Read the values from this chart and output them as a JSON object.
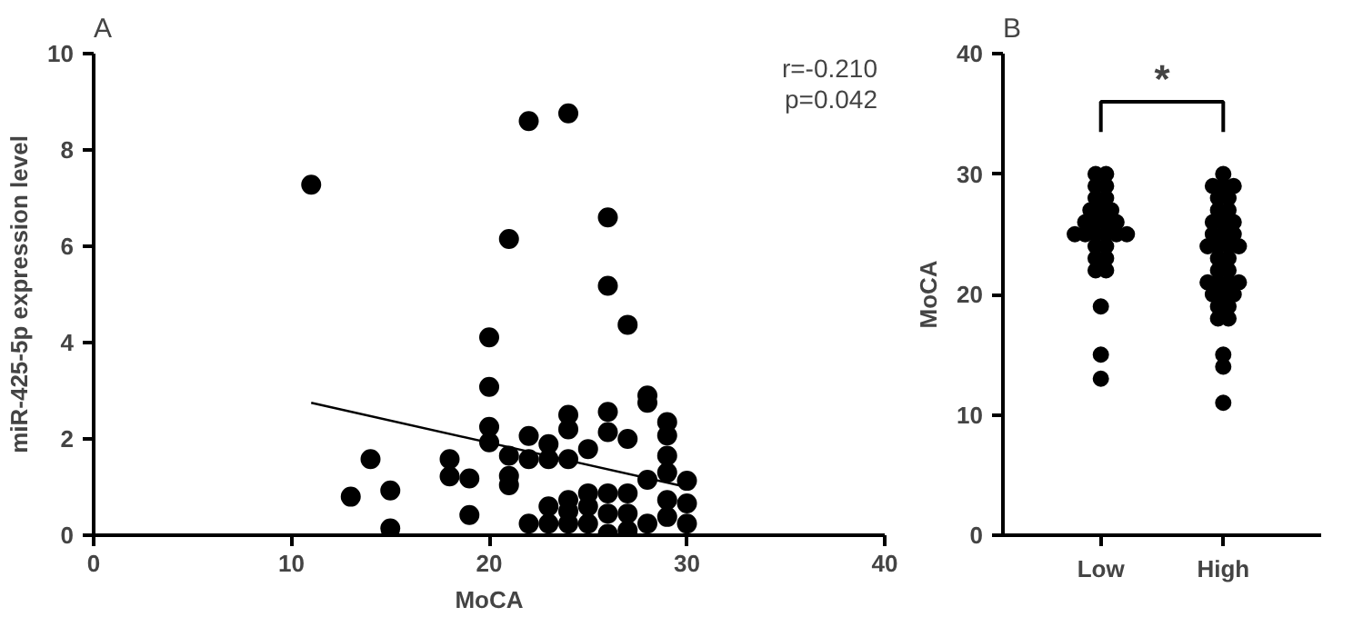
{
  "chart_data": [
    {
      "type": "scatter",
      "title": "A",
      "xlabel": "MoCA",
      "ylabel": "miR-425-5p expression level",
      "xlim": [
        0,
        40
      ],
      "xticks": [
        0,
        10,
        20,
        30,
        40
      ],
      "ylim": [
        0,
        10
      ],
      "yticks": [
        0,
        2,
        4,
        6,
        8,
        10
      ],
      "grid": false,
      "annotations": [
        "r=-0.210",
        "p=0.042"
      ],
      "series": [
        {
          "color": "#000000",
          "marker": "circle",
          "x": [
            11,
            22,
            24,
            26,
            21,
            26,
            27,
            20,
            20,
            28,
            20,
            20,
            13,
            14,
            15,
            15,
            18,
            18,
            19,
            19,
            21,
            21,
            21,
            22,
            22,
            22,
            23,
            23,
            23,
            24,
            24,
            24,
            24,
            24,
            25,
            25,
            25,
            26,
            26,
            26,
            26,
            26,
            27,
            27,
            27,
            28,
            28,
            28,
            29,
            29,
            29,
            29,
            29,
            29,
            30,
            30,
            30,
            23,
            25,
            27,
            24
          ],
          "values": [
            7.28,
            8.6,
            8.76,
            6.6,
            6.15,
            5.18,
            4.37,
            4.11,
            3.08,
            2.9,
            2.25,
            1.93,
            0.8,
            1.58,
            0.93,
            0.14,
            1.58,
            1.22,
            1.18,
            0.42,
            1.65,
            1.23,
            1.04,
            2.06,
            1.58,
            0.24,
            1.89,
            1.58,
            0.6,
            2.5,
            2.2,
            1.58,
            0.73,
            0.24,
            1.79,
            0.87,
            0.24,
            2.56,
            2.14,
            0.87,
            0.45,
            0.03,
            2.0,
            0.87,
            0.45,
            2.75,
            1.15,
            0.24,
            2.35,
            2.07,
            1.65,
            1.3,
            0.73,
            0.38,
            1.13,
            0.66,
            0.24,
            0.24,
            0.6,
            0.1,
            0.5
          ]
        },
        {
          "type": "line",
          "color": "#000000",
          "x": [
            11,
            30
          ],
          "values": [
            2.75,
            1.0
          ]
        }
      ]
    },
    {
      "type": "scatter",
      "title": "B",
      "ylabel": "MoCA",
      "categories": [
        "Low",
        "High"
      ],
      "ylim": [
        0,
        40
      ],
      "yticks": [
        0,
        10,
        20,
        30,
        40
      ],
      "grid": false,
      "marker": "circle",
      "annotations": [
        "*"
      ],
      "series": [
        {
          "color": "#000000",
          "x": [
            "Low",
            "Low",
            "Low",
            "Low",
            "Low",
            "Low",
            "Low",
            "Low",
            "Low",
            "Low",
            "Low",
            "Low",
            "Low",
            "Low",
            "Low",
            "Low",
            "Low",
            "Low",
            "Low",
            "Low",
            "Low",
            "Low",
            "Low",
            "Low",
            "Low",
            "Low",
            "Low",
            "Low"
          ],
          "values": [
            30,
            30,
            29,
            29,
            28,
            28,
            27,
            27,
            27,
            26,
            26,
            26,
            26,
            25,
            25,
            25,
            25,
            25,
            25,
            24,
            24,
            23,
            23,
            22,
            22,
            19,
            15,
            13
          ]
        },
        {
          "color": "#000000",
          "x": [
            "High",
            "High",
            "High",
            "High",
            "High",
            "High",
            "High",
            "High",
            "High",
            "High",
            "High",
            "High",
            "High",
            "High",
            "High",
            "High",
            "High",
            "High",
            "High",
            "High",
            "High",
            "High",
            "High",
            "High",
            "High",
            "High",
            "High",
            "High",
            "High",
            "High",
            "High",
            "High",
            "High",
            "High",
            "High",
            "High"
          ],
          "values": [
            30,
            29,
            29,
            29,
            28,
            28,
            27,
            27,
            26,
            26,
            26,
            25,
            25,
            25,
            24,
            24,
            24,
            24,
            23,
            23,
            22,
            22,
            21,
            21,
            21,
            21,
            20,
            20,
            20,
            19,
            19,
            18,
            18,
            15,
            14,
            11
          ]
        }
      ]
    }
  ]
}
